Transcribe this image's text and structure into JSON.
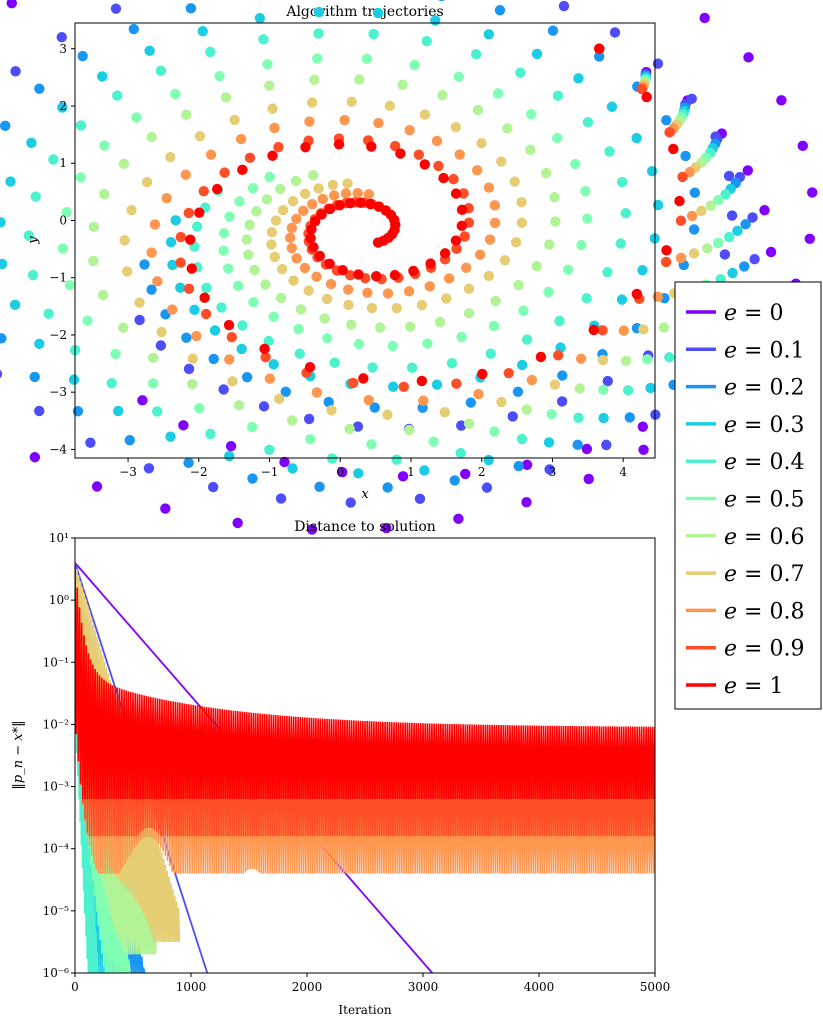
{
  "chart_data": [
    {
      "type": "scatter",
      "title": "Algorithm trajectories",
      "xlabel": "x",
      "ylabel": "y",
      "xlim": [
        -3.75,
        4.45
      ],
      "ylim": [
        -4.15,
        3.45
      ],
      "xticks": [
        -3,
        -2,
        -1,
        0,
        1,
        2,
        3,
        4
      ],
      "xtick_labels": [
        "−3",
        "−2",
        "−1",
        "0",
        "1",
        "2",
        "3",
        "4"
      ],
      "yticks": [
        -4,
        -3,
        -2,
        -1,
        0,
        1,
        2,
        3
      ],
      "ytick_labels": [
        "−4",
        "−3",
        "−2",
        "−1",
        "0",
        "1",
        "2",
        "3"
      ],
      "start_point": [
        3.0,
        3.0
      ],
      "solution_point": [
        0.35,
        -0.15
      ],
      "series": [
        {
          "name": "e = 0",
          "color": "#8000ff",
          "decay": 0.0,
          "turns": 1.5
        },
        {
          "name": "e = 0.1",
          "color": "#4d4dfc",
          "decay": 0.22,
          "turns": 1.55
        },
        {
          "name": "e = 0.2",
          "color": "#1996f3",
          "decay": 0.35,
          "turns": 1.6
        },
        {
          "name": "e = 0.3",
          "color": "#1ccce3",
          "decay": 0.5,
          "turns": 1.65
        },
        {
          "name": "e = 0.4",
          "color": "#4cf2ce",
          "decay": 0.65,
          "turns": 1.7
        },
        {
          "name": "e = 0.5",
          "color": "#80ffb4",
          "decay": 0.85,
          "turns": 1.75
        },
        {
          "name": "e = 0.6",
          "color": "#b2f396",
          "decay": 1.05,
          "turns": 1.8
        },
        {
          "name": "e = 0.7",
          "color": "#e6cd73",
          "decay": 1.3,
          "turns": 1.85
        },
        {
          "name": "e = 0.8",
          "color": "#ff964f",
          "decay": 1.55,
          "turns": 1.9
        },
        {
          "name": "e = 0.9",
          "color": "#ff4d27",
          "decay": 1.85,
          "turns": 1.95
        },
        {
          "name": "e = 1",
          "color": "#ff0000",
          "decay": 2.2,
          "turns": 2.3
        }
      ]
    },
    {
      "type": "line",
      "title": "Distance to solution",
      "xlabel": "Iteration",
      "ylabel": "‖p_n − x*‖",
      "yscale": "log",
      "xlim": [
        0,
        5000
      ],
      "ylim_exp": [
        -6,
        1
      ],
      "xticks": [
        0,
        1000,
        2000,
        3000,
        4000,
        5000
      ],
      "xtick_labels": [
        "0",
        "1000",
        "2000",
        "3000",
        "4000",
        "5000"
      ],
      "ytick_exps": [
        -6,
        -5,
        -4,
        -3,
        -2,
        -1,
        0,
        1
      ],
      "ytick_labels": [
        "10⁻⁶",
        "10⁻⁵",
        "10⁻⁴",
        "10⁻³",
        "10⁻²",
        "10⁻¹",
        "10⁰",
        "10¹"
      ],
      "series": [
        {
          "name": "e = 0",
          "color": "#8000ff",
          "start_log": 0.6,
          "end_iter": 3080,
          "end_log": -6,
          "osc": false
        },
        {
          "name": "e = 0.1",
          "color": "#4d4dfc",
          "start_log": 0.6,
          "end_iter": 1140,
          "end_log": -6,
          "osc": false
        },
        {
          "name": "e = 0.2",
          "color": "#1996f3",
          "start_log": 0.6,
          "end_iter": 600,
          "end_log": -6,
          "osc": true,
          "floor_log": -6.0
        },
        {
          "name": "e = 0.3",
          "color": "#1ccce3",
          "start_log": 0.6,
          "end_iter": 330,
          "end_log": -6,
          "osc": true,
          "floor_log": -6.0
        },
        {
          "name": "e = 0.4",
          "color": "#4cf2ce",
          "start_log": 0.6,
          "end_iter": 200,
          "end_log": -6,
          "osc": true,
          "floor_log": -6.0
        },
        {
          "name": "e = 0.5",
          "color": "#80ffb4",
          "start_log": 0.6,
          "end_iter": 480,
          "end_log": -6,
          "osc": true,
          "floor_log": -6.0
        },
        {
          "name": "e = 0.6",
          "color": "#b2f396",
          "start_log": 0.6,
          "end_iter": 700,
          "end_log": -5.5,
          "osc": true,
          "floor_log": -5.7
        },
        {
          "name": "e = 0.7",
          "color": "#e6cd73",
          "start_log": 0.6,
          "end_iter": 900,
          "end_log": -5.0,
          "osc": true,
          "floor_log": -5.5
        },
        {
          "name": "e = 0.8",
          "color": "#ff964f",
          "start_log": 0.6,
          "end_iter": 5000,
          "end_log": -2.9,
          "osc": true,
          "floor_log": -4.4
        },
        {
          "name": "e = 0.9",
          "color": "#ff4d27",
          "start_log": 0.6,
          "end_iter": 5000,
          "end_log": -2.55,
          "osc": true,
          "floor_log": -3.8
        },
        {
          "name": "e = 1",
          "color": "#ff0000",
          "start_log": 0.6,
          "end_iter": 5000,
          "end_log": -2.05,
          "osc": true,
          "floor_log": -3.2
        }
      ]
    }
  ],
  "legend": {
    "placement": "right",
    "entries": [
      {
        "var": "e",
        "value": "0",
        "color": "#8000ff"
      },
      {
        "var": "e",
        "value": "0.1",
        "color": "#4d4dfc"
      },
      {
        "var": "e",
        "value": "0.2",
        "color": "#1996f3"
      },
      {
        "var": "e",
        "value": "0.3",
        "color": "#1ccce3"
      },
      {
        "var": "e",
        "value": "0.4",
        "color": "#4cf2ce"
      },
      {
        "var": "e",
        "value": "0.5",
        "color": "#80ffb4"
      },
      {
        "var": "e",
        "value": "0.6",
        "color": "#b2f396"
      },
      {
        "var": "e",
        "value": "0.7",
        "color": "#e6cd73"
      },
      {
        "var": "e",
        "value": "0.8",
        "color": "#ff964f"
      },
      {
        "var": "e",
        "value": "0.9",
        "color": "#ff4d27"
      },
      {
        "var": "e",
        "value": "1",
        "color": "#ff0000"
      }
    ]
  }
}
